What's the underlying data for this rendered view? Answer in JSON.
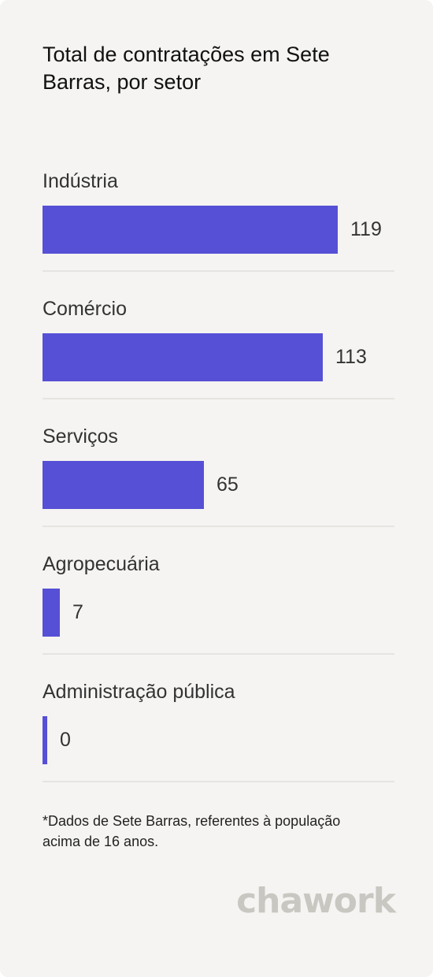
{
  "title": "Total de contratações em Sete Barras, por setor",
  "footnote": "*Dados de Sete Barras, referentes à população acima de 16 anos.",
  "brand": "chawork",
  "colors": {
    "bar": "#5650d6",
    "background": "#f5f4f2",
    "divider": "#e6e4e1",
    "logo": "#c9c7c1"
  },
  "chart_data": {
    "type": "bar",
    "orientation": "horizontal",
    "title": "Total de contratações em Sete Barras, por setor",
    "categories": [
      "Indústria",
      "Comércio",
      "Serviços",
      "Agropecuária",
      "Administração pública"
    ],
    "values": [
      119,
      113,
      65,
      7,
      0
    ],
    "xlim": [
      0,
      119
    ],
    "grid": false,
    "legend": "none"
  }
}
